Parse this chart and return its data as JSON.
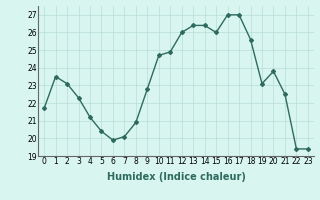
{
  "x": [
    0,
    1,
    2,
    3,
    4,
    5,
    6,
    7,
    8,
    9,
    10,
    11,
    12,
    13,
    14,
    15,
    16,
    17,
    18,
    19,
    20,
    21,
    22,
    23
  ],
  "y": [
    21.7,
    23.5,
    23.1,
    22.3,
    21.2,
    20.4,
    19.9,
    20.1,
    20.9,
    22.8,
    24.7,
    24.9,
    26.0,
    26.4,
    26.4,
    26.0,
    27.0,
    27.0,
    25.6,
    23.1,
    23.8,
    22.5,
    19.4,
    19.4
  ],
  "line_color": "#2e6b5e",
  "marker": "D",
  "marker_size": 2,
  "linewidth": 1.0,
  "xlabel": "Humidex (Indice chaleur)",
  "bg_color": "#d8f5f0",
  "grid_color": "#b8ddd8",
  "ylim": [
    19,
    27.5
  ],
  "yticks": [
    19,
    20,
    21,
    22,
    23,
    24,
    25,
    26,
    27
  ],
  "xtick_labels": [
    "0",
    "1",
    "2",
    "3",
    "4",
    "5",
    "6",
    "7",
    "8",
    "9",
    "10",
    "11",
    "12",
    "13",
    "14",
    "15",
    "16",
    "17",
    "18",
    "19",
    "20",
    "21",
    "22",
    "23"
  ],
  "xlabel_fontsize": 7,
  "tick_fontsize": 5.5
}
